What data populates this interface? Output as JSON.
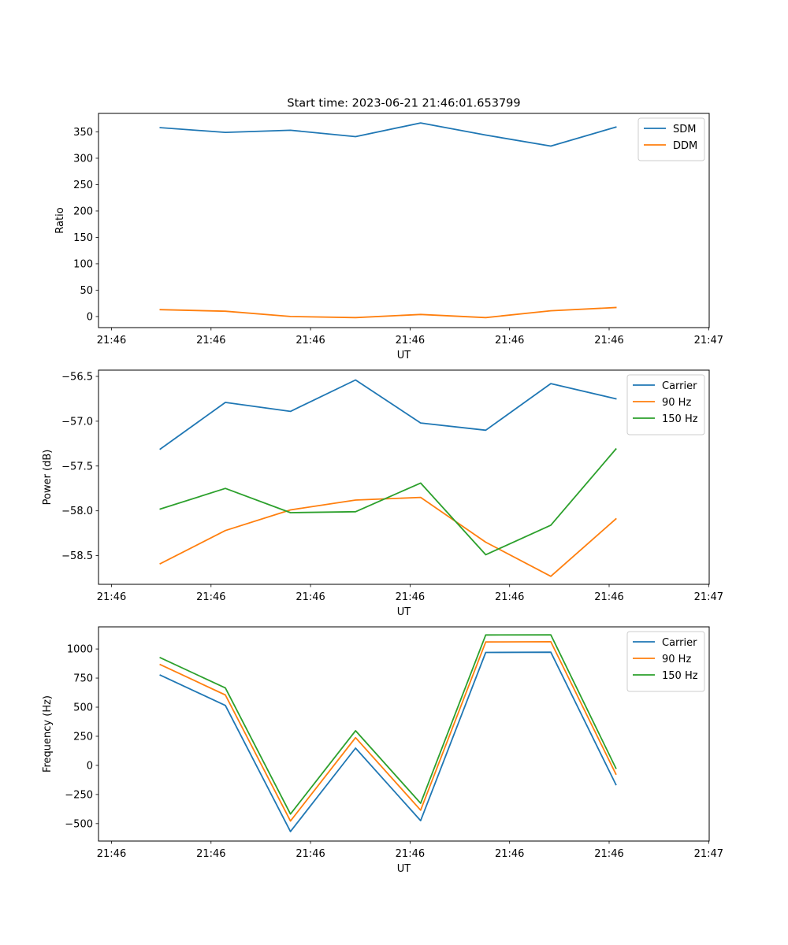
{
  "title": "Start time: 2023-06-21 21:46:01.653799",
  "chart_data": [
    {
      "type": "line",
      "xlabel": "UT",
      "ylabel": "Ratio",
      "x_ticks": [
        "21:46",
        "21:46",
        "21:46",
        "21:46",
        "21:46",
        "21:46",
        "21:47"
      ],
      "y_ticks": [
        "0",
        "50",
        "100",
        "150",
        "200",
        "250",
        "300",
        "350"
      ],
      "ylim": [
        -21,
        385
      ],
      "legend_position": "upper right",
      "grid": false,
      "series": [
        {
          "name": "SDM",
          "color": "#1f77b4",
          "values": [
            358,
            349,
            353,
            341,
            367,
            344,
            323,
            359
          ]
        },
        {
          "name": "DDM",
          "color": "#ff7f0e",
          "values": [
            13,
            10,
            0,
            -2,
            4,
            -2,
            11,
            17
          ]
        }
      ]
    },
    {
      "type": "line",
      "xlabel": "UT",
      "ylabel": "Power (dB)",
      "x_ticks": [
        "21:46",
        "21:46",
        "21:46",
        "21:46",
        "21:46",
        "21:46",
        "21:47"
      ],
      "y_ticks": [
        "−58.5",
        "−58.0",
        "−57.5",
        "−57.0",
        "−56.5"
      ],
      "ylim": [
        -58.82,
        -56.43
      ],
      "legend_position": "upper right",
      "grid": false,
      "series": [
        {
          "name": "Carrier",
          "color": "#1f77b4",
          "values": [
            -57.31,
            -56.79,
            -56.89,
            -56.54,
            -57.02,
            -57.1,
            -56.58,
            -56.75
          ]
        },
        {
          "name": "90 Hz",
          "color": "#ff7f0e",
          "values": [
            -58.59,
            -58.22,
            -57.99,
            -57.88,
            -57.85,
            -58.35,
            -58.73,
            -58.09
          ]
        },
        {
          "name": "150 Hz",
          "color": "#2ca02c",
          "values": [
            -57.98,
            -57.75,
            -58.02,
            -58.01,
            -57.69,
            -58.49,
            -58.16,
            -57.31
          ]
        }
      ]
    },
    {
      "type": "line",
      "xlabel": "UT",
      "ylabel": "Frequency (Hz)",
      "x_ticks": [
        "21:46",
        "21:46",
        "21:46",
        "21:46",
        "21:46",
        "21:46",
        "21:47"
      ],
      "y_ticks": [
        "−500",
        "−250",
        "0",
        "250",
        "500",
        "750",
        "1000"
      ],
      "ylim": [
        -650,
        1190
      ],
      "legend_position": "upper right",
      "grid": false,
      "series": [
        {
          "name": "Carrier",
          "color": "#1f77b4",
          "values": [
            775,
            515,
            -568,
            148,
            -475,
            970,
            972,
            -165
          ]
        },
        {
          "name": "90 Hz",
          "color": "#ff7f0e",
          "values": [
            865,
            605,
            -478,
            238,
            -385,
            1060,
            1062,
            -75
          ]
        },
        {
          "name": "150 Hz",
          "color": "#2ca02c",
          "values": [
            925,
            665,
            -418,
            298,
            -325,
            1120,
            1122,
            -25
          ]
        }
      ]
    }
  ]
}
